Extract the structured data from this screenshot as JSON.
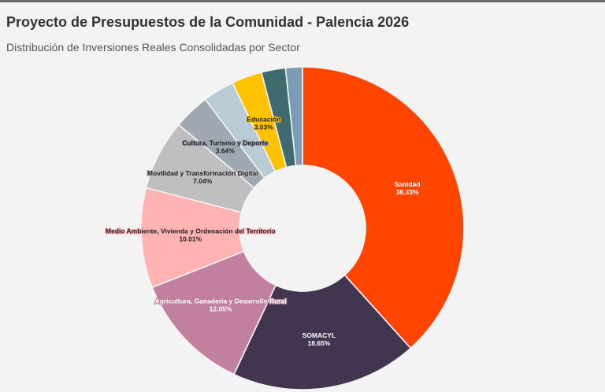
{
  "header": {
    "title": "Proyecto de Presupuestos de la Comunidad - Palencia 2026",
    "subtitle": "Distribución de Inversiones Reales Consolidadas por Sector"
  },
  "chart_data": {
    "type": "pie",
    "variant": "donut",
    "title": "Proyecto de Presupuestos de la Comunidad - Palencia 2026",
    "subtitle": "Distribución de Inversiones Reales Consolidadas por Sector",
    "unit": "%",
    "start_angle": "12 o'clock",
    "direction": "clockwise",
    "legend": "none (inline slice labels)",
    "slices": [
      {
        "name": "Sanidad",
        "value": 38.33,
        "label": "38.33%",
        "color": "#ff4500",
        "text_color": "#ffffff",
        "halo": "#ff4500"
      },
      {
        "name": "SOMACYL",
        "value": 18.65,
        "label": "18.65%",
        "color": "#42354f",
        "text_color": "#ffffff",
        "halo": "#42354f"
      },
      {
        "name": "Agricultura, Ganadería y Desarrollo Rural",
        "value": 12.05,
        "label": "12.05%",
        "color": "#c0809e",
        "text_color": "#ffffff",
        "halo": "#c0809e"
      },
      {
        "name": "Medio Ambiente, Vivienda y Ordenación del Territorio",
        "value": 10.01,
        "label": "10.01%",
        "color": "#ffb3b3",
        "text_color": "#222222",
        "halo": "#ffb3b3"
      },
      {
        "name": "Movilidad y Transformación Digital",
        "value": 7.04,
        "label": "7.04%",
        "color": "#bfbfbf",
        "text_color": "#222222",
        "halo": "#bfbfbf"
      },
      {
        "name": "Cultura, Turismo y Deporte",
        "value": 3.64,
        "label": "3.64%",
        "color": "#a0a8b4",
        "text_color": "#222222",
        "halo": "#a0a8b4"
      },
      {
        "name": null,
        "value": null,
        "label": null,
        "color": "#b9ccd5",
        "text_color": null,
        "halo": null
      },
      {
        "name": "Educación",
        "value": 3.03,
        "label": "3.03%",
        "color": "#ffc200",
        "text_color": "#222222",
        "halo": "#ffc200"
      },
      {
        "name": null,
        "value": null,
        "label": null,
        "color": "#3f6b6e",
        "text_color": null,
        "halo": null
      },
      {
        "name": null,
        "value": null,
        "label": null,
        "color": "#7c9cb5",
        "text_color": null,
        "halo": null
      }
    ],
    "unlabeled_total": 7.25,
    "render_weights_unlabeled": [
      3.0,
      2.3,
      1.6
    ]
  }
}
